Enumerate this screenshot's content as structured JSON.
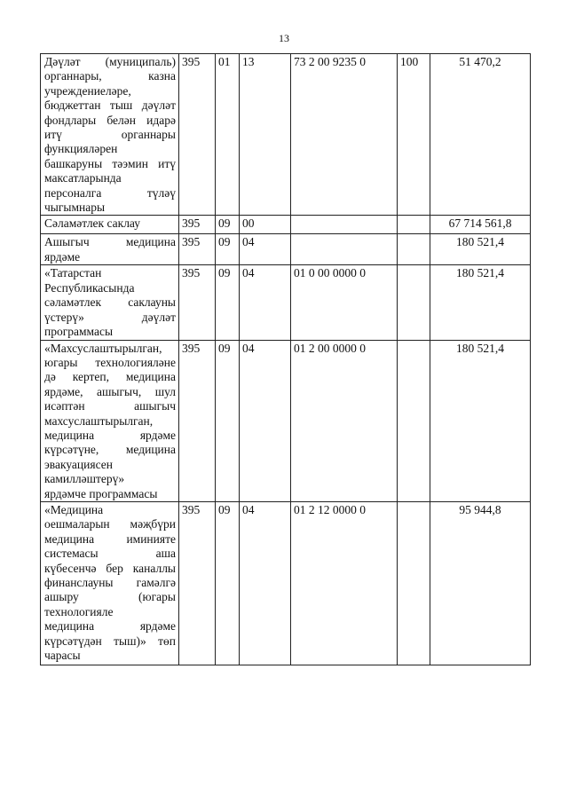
{
  "page_number": "13",
  "rows": [
    {
      "name_lines": [
        "Дәүләт (муниципаль)",
        "органнары, казна",
        "учреждениеләре,",
        "бюджеттан тыш дәүләт",
        "фондлары белән идарә",
        "итү органнары",
        "функцияләрен",
        "башкаруны тәэмин итү",
        "максатларында",
        "персоналга түләү",
        "чыгымнары"
      ],
      "c1": "395",
      "c2": "01",
      "c3": "13",
      "c4": "73 2 00 9235 0",
      "c5": "100",
      "amount": "51 470,2"
    },
    {
      "name_lines": [
        "Сәламәтлек саклау"
      ],
      "c1": "395",
      "c2": "09",
      "c3": "00",
      "c4": "",
      "c5": "",
      "amount": "67 714 561,8"
    },
    {
      "name_lines": [
        "Ашыгыч медицина",
        "ярдәме"
      ],
      "c1": "395",
      "c2": "09",
      "c3": "04",
      "c4": "",
      "c5": "",
      "amount": "180 521,4"
    },
    {
      "name_lines": [
        "«Татарстан",
        "Республикасында",
        "сәламәтлек саклауны",
        "үстерү» дәүләт",
        "программасы"
      ],
      "c1": "395",
      "c2": "09",
      "c3": "04",
      "c4": "01 0 00 0000 0",
      "c5": "",
      "amount": "180 521,4"
    },
    {
      "name_lines": [
        "«Махсуслаштырылган,",
        "югары технологияләне",
        "дә кертеп, медицина",
        "ярдәме, ашыгыч, шул",
        "исәптән ашыгыч",
        "махсуслаштырылган,",
        "медицина ярдәме",
        "күрсәтүне, медицина",
        "эвакуациясен",
        "камилләштерү»",
        "ярдәмче программасы"
      ],
      "c1": "395",
      "c2": "09",
      "c3": "04",
      "c4": "01 2 00 0000 0",
      "c5": "",
      "amount": "180 521,4"
    },
    {
      "name_lines": [
        "«Медицина",
        "оешмаларын мәҗбүри",
        "медицина иминияте",
        "системасы аша",
        "күбесенчә бер каналлы",
        "финанслауны гамәлгә",
        "ашыру (югары",
        "технологияле",
        "медицина ярдәме",
        "күрсәтүдән тыш)» төп",
        "чарасы"
      ],
      "c1": "395",
      "c2": "09",
      "c3": "04",
      "c4": "01 2 12 0000 0",
      "c5": "",
      "amount": "95 944,8"
    }
  ]
}
